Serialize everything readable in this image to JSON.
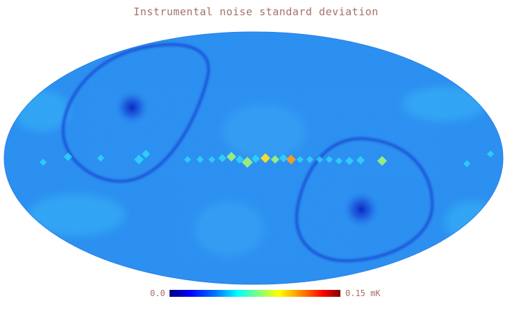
{
  "title": "Instrumental noise standard deviation",
  "colorbar": {
    "min_label": "0.0",
    "max_label": "0.15 mK",
    "min_value": 0.0,
    "max_value": 0.15,
    "unit": "mK",
    "colormap": "jet"
  },
  "map": {
    "projection": "mollweide",
    "base_color": "#2a8cf0",
    "ring_color": "#1a55d8",
    "pole_color": "#0a2fc8",
    "hot_colors": [
      "#2ee0ff",
      "#9cf07a",
      "#ffe02a",
      "#ff9a20"
    ]
  }
}
